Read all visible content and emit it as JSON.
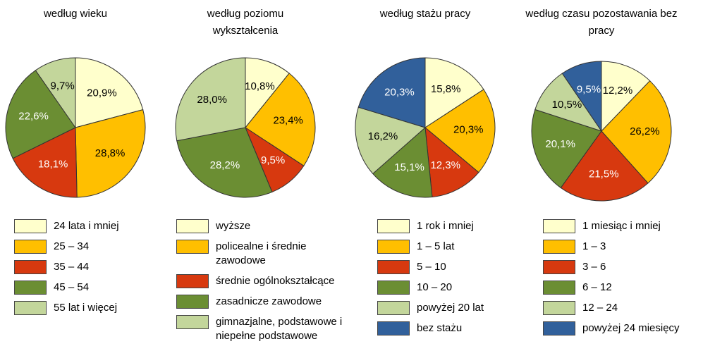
{
  "chart_data": [
    {
      "type": "pie",
      "title": "według wieku",
      "categories": [
        "24 lata i mniej",
        "25 – 34",
        "35 – 44",
        "45 – 54",
        "55 lat i więcej"
      ],
      "values": [
        20.9,
        28.8,
        18.1,
        22.6,
        9.7
      ],
      "value_labels": [
        "20,9%",
        "28,8%",
        "18,1%",
        "22,6%",
        "9,7%"
      ],
      "colors": [
        "#ffffcc",
        "#ffbf00",
        "#d7390f",
        "#6b8e33",
        "#c3d69b"
      ]
    },
    {
      "type": "pie",
      "title": "według poziomu wykształcenia",
      "categories": [
        "wyższe",
        "policealne i średnie zawodowe",
        "średnie ogólnokształcące",
        "zasadnicze zawodowe",
        "gimnazjalne, podstawowe i niepełne podstawowe"
      ],
      "values": [
        10.8,
        23.4,
        9.5,
        28.2,
        28.0
      ],
      "value_labels": [
        "10,8%",
        "23,4%",
        "9,5%",
        "28,2%",
        "28,0%"
      ],
      "colors": [
        "#ffffcc",
        "#ffbf00",
        "#d7390f",
        "#6b8e33",
        "#c3d69b"
      ]
    },
    {
      "type": "pie",
      "title": "według stażu pracy",
      "categories": [
        "1 rok i mniej",
        "1 – 5 lat",
        "5 – 10",
        "10 – 20",
        "powyżej 20 lat",
        "bez stażu"
      ],
      "values": [
        15.8,
        20.3,
        12.3,
        15.1,
        16.2,
        20.3
      ],
      "value_labels": [
        "15,8%",
        "20,3%",
        "12,3%",
        "15,1%",
        "16,2%",
        "20,3%"
      ],
      "colors": [
        "#ffffcc",
        "#ffbf00",
        "#d7390f",
        "#6b8e33",
        "#c3d69b",
        "#31609b"
      ]
    },
    {
      "type": "pie",
      "title": "według czasu pozostawania bez pracy",
      "categories": [
        "1 miesiąc i mniej",
        "1 – 3",
        "3 – 6",
        "6 – 12",
        "12 – 24",
        "powyżej 24 miesięcy"
      ],
      "values": [
        12.2,
        26.2,
        21.5,
        20.1,
        10.5,
        9.5
      ],
      "value_labels": [
        "12,2%",
        "26,2%",
        "21,5%",
        "20,1%",
        "10,5%",
        "9,5%"
      ],
      "colors": [
        "#ffffcc",
        "#ffbf00",
        "#d7390f",
        "#6b8e33",
        "#c3d69b",
        "#31609b"
      ]
    }
  ]
}
